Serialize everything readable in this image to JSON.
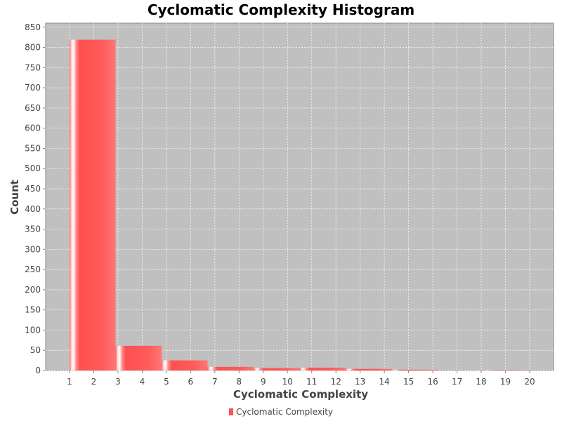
{
  "chart_data": {
    "type": "bar",
    "title": "Cyclomatic Complexity Histogram",
    "xlabel": "Cyclomatic Complexity",
    "ylabel": "Count",
    "x_ticks": [
      "1",
      "2",
      "3",
      "4",
      "5",
      "6",
      "7",
      "8",
      "9",
      "10",
      "11",
      "12",
      "13",
      "14",
      "15",
      "16",
      "17",
      "18",
      "19",
      "20"
    ],
    "y_ticks": [
      0,
      50,
      100,
      150,
      200,
      250,
      300,
      350,
      400,
      450,
      500,
      550,
      600,
      650,
      700,
      750,
      800,
      850
    ],
    "xlim": [
      0,
      20.9
    ],
    "ylim": [
      0,
      860
    ],
    "bins": [
      {
        "start": 1.0,
        "end": 2.9,
        "count": 819
      },
      {
        "start": 2.9,
        "end": 4.8,
        "count": 61
      },
      {
        "start": 4.8,
        "end": 6.7,
        "count": 25
      },
      {
        "start": 6.7,
        "end": 8.6,
        "count": 9
      },
      {
        "start": 8.6,
        "end": 10.5,
        "count": 6
      },
      {
        "start": 10.5,
        "end": 12.4,
        "count": 7
      },
      {
        "start": 12.4,
        "end": 14.3,
        "count": 4
      },
      {
        "start": 14.3,
        "end": 16.2,
        "count": 2
      },
      {
        "start": 16.2,
        "end": 18.1,
        "count": 0
      },
      {
        "start": 18.1,
        "end": 20.0,
        "count": 1
      }
    ],
    "series": [
      {
        "name": "Cyclomatic Complexity",
        "color": "#ff5555"
      }
    ],
    "grid": true,
    "legend_position": "bottom",
    "plot_background": "#c0c0c0"
  }
}
